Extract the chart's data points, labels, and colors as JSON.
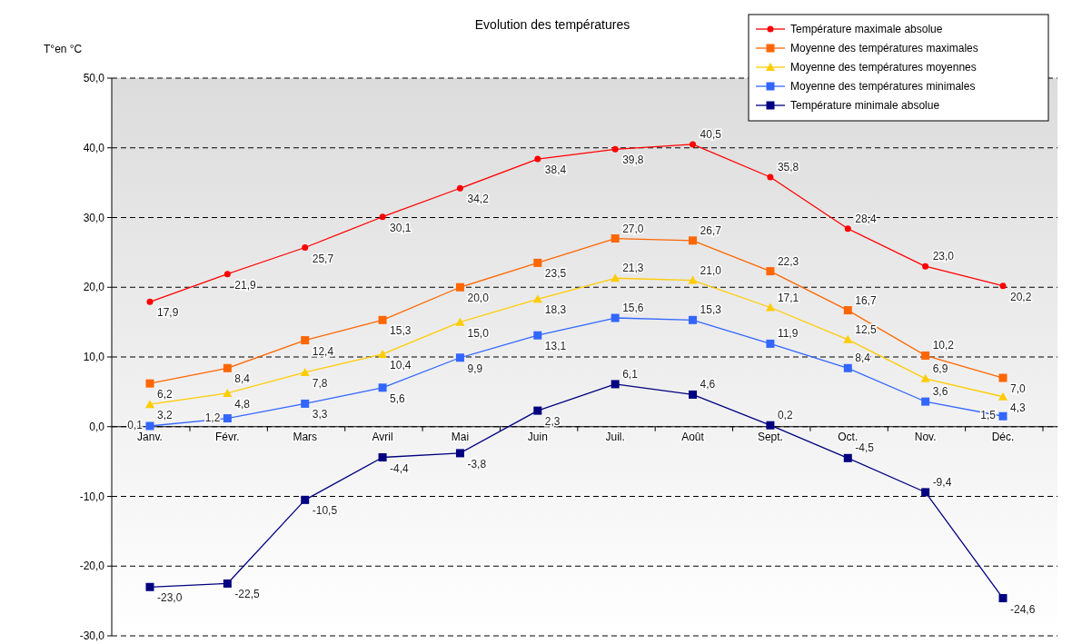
{
  "chart_data": {
    "type": "line",
    "title": "Evolution des températures",
    "ylabel": "T°en °C",
    "categories": [
      "Janv.",
      "Févr.",
      "Mars",
      "Avril",
      "Mai",
      "Juin",
      "Juil.",
      "Août",
      "Sept.",
      "Oct.",
      "Nov.",
      "Déc."
    ],
    "ylim": [
      -30,
      50
    ],
    "yticks": [
      {
        "value": -30,
        "label": "-30,0"
      },
      {
        "value": -20,
        "label": "-20,0"
      },
      {
        "value": -10,
        "label": "-10,0"
      },
      {
        "value": 0,
        "label": "0,0"
      },
      {
        "value": 10,
        "label": "10,0"
      },
      {
        "value": 20,
        "label": "20,0"
      },
      {
        "value": 30,
        "label": "30,0"
      },
      {
        "value": 40,
        "label": "40,0"
      },
      {
        "value": 50,
        "label": "50,0"
      }
    ],
    "grid": "y",
    "legend": "top right",
    "line_style": "solid",
    "series": [
      {
        "name": "Température maximale absolue",
        "color": "#ff0000",
        "marker": "circle",
        "values": [
          17.9,
          21.9,
          25.7,
          30.1,
          34.2,
          38.4,
          39.8,
          40.5,
          35.8,
          28.4,
          23.0,
          20.2
        ],
        "value_labels": [
          "17,9",
          "21,9",
          "25,7",
          "30,1",
          "34,2",
          "38,4",
          "39,8",
          "40,5",
          "35,8",
          "28,4",
          "23,0",
          "20,2"
        ]
      },
      {
        "name": "Moyenne des températures maximales",
        "color": "#ff6600",
        "marker": "square",
        "values": [
          6.2,
          8.4,
          12.4,
          15.3,
          20.0,
          23.5,
          27.0,
          26.7,
          22.3,
          16.7,
          10.2,
          7.0
        ],
        "value_labels": [
          "6,2",
          "8,4",
          "12,4",
          "15,3",
          "20,0",
          "23,5",
          "27,0",
          "26,7",
          "22,3",
          "16,7",
          "10,2",
          "7,0"
        ]
      },
      {
        "name": "Moyenne des températures moyennes",
        "color": "#ffcc00",
        "marker": "triangle",
        "values": [
          3.2,
          4.8,
          7.8,
          10.4,
          15.0,
          18.3,
          21.3,
          21.0,
          17.1,
          12.5,
          6.9,
          4.3
        ],
        "value_labels": [
          "3,2",
          "4,8",
          "7,8",
          "10,4",
          "15,0",
          "18,3",
          "21,3",
          "21,0",
          "17,1",
          "12,5",
          "6,9",
          "4,3"
        ]
      },
      {
        "name": "Moyenne des températures minimales",
        "color": "#3366ff",
        "marker": "square",
        "values": [
          0.1,
          1.2,
          3.3,
          5.6,
          9.9,
          13.1,
          15.6,
          15.3,
          11.9,
          8.4,
          3.6,
          1.5
        ],
        "value_labels": [
          "0,1",
          "1,2",
          "3,3",
          "5,6",
          "9,9",
          "13,1",
          "15,6",
          "15,3",
          "11,9",
          "8,4",
          "3,6",
          "1,5"
        ]
      },
      {
        "name": "Température minimale absolue",
        "color": "#000080",
        "marker": "square",
        "values": [
          -23.0,
          -22.5,
          -10.5,
          -4.4,
          -3.8,
          2.3,
          6.1,
          4.6,
          0.2,
          -4.5,
          -9.4,
          -24.6
        ],
        "value_labels": [
          "-23,0",
          "-22,5",
          "-10,5",
          "-4,4",
          "-3,8",
          "2,3",
          "6,1",
          "4,6",
          "0,2",
          "-4,5",
          "-9,4",
          "-24,6"
        ]
      }
    ]
  }
}
